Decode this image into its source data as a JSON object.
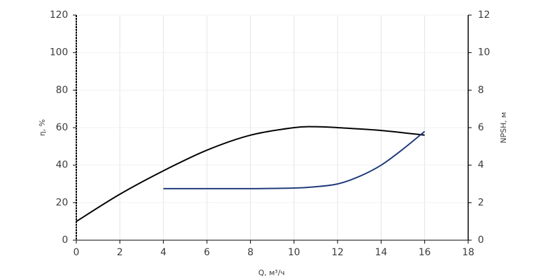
{
  "chart_data": {
    "type": "line",
    "x_label": "Q, м³/ч",
    "y_label": "η, %",
    "y2_label": "NPSH, м",
    "xlim": [
      0,
      18
    ],
    "xticks": [
      0,
      2,
      4,
      6,
      8,
      10,
      12,
      14,
      16,
      18
    ],
    "ylim": [
      0,
      120
    ],
    "yticks": [
      0,
      20,
      40,
      60,
      80,
      100,
      120
    ],
    "y2lim": [
      0,
      12
    ],
    "y2ticks": [
      0,
      2,
      4,
      6,
      8,
      10,
      12
    ],
    "grid": true,
    "series": [
      {
        "color": "#000000",
        "x": [
          0,
          2,
          4,
          6,
          8,
          10,
          11,
          12,
          14,
          16
        ],
        "values": [
          10,
          24.5,
          37,
          48,
          56,
          60,
          60.5,
          60,
          58.5,
          56
        ]
      },
      {
        "color": "#1f3a7a",
        "axis": "y2",
        "x": [
          4,
          6,
          8,
          10,
          11,
          12,
          13,
          14,
          15,
          16
        ],
        "values": [
          2.75,
          2.75,
          2.75,
          2.78,
          2.85,
          3.0,
          3.4,
          4.0,
          4.85,
          5.8
        ]
      }
    ]
  }
}
